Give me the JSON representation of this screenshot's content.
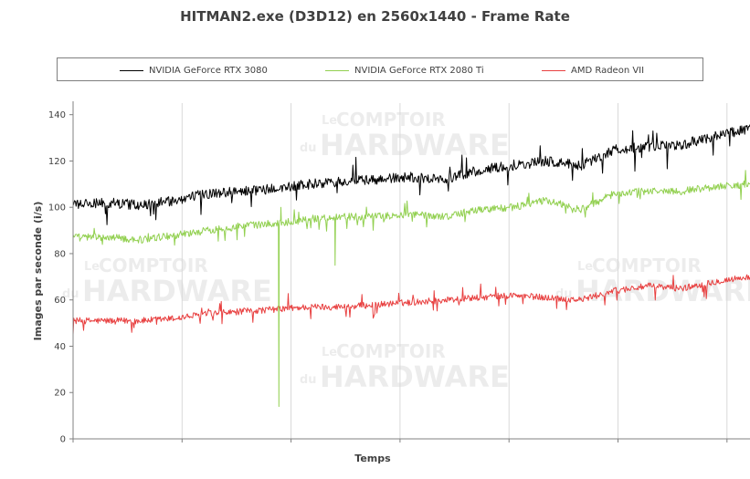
{
  "chart_data": {
    "type": "line",
    "title": "HITMAN2.exe (D3D12) en 2560x1440 - Frame Rate",
    "xlabel": "Temps",
    "ylabel": "Images par seconde (i/s)",
    "ylim": [
      0,
      145
    ],
    "yticks": [
      0,
      20,
      40,
      60,
      80,
      100,
      120,
      140
    ],
    "xlim": [
      0,
      100
    ],
    "xgrid": [
      0,
      16.1,
      32.2,
      48.3,
      64.4,
      80.5,
      96.6
    ],
    "grid": "vertical",
    "legend_position": "top",
    "watermark": {
      "line1": "Le",
      "line2": "COMPTOIR",
      "line3": "du",
      "line4": "HARDWARE"
    },
    "series": [
      {
        "name": "NVIDIA GeForce RTX 3080",
        "color": "#000000",
        "noise": 2.2,
        "x": [
          0,
          5,
          10,
          15,
          20,
          25,
          30,
          35,
          40,
          45,
          50,
          55,
          60,
          65,
          70,
          75,
          80,
          85,
          90,
          95,
          100
        ],
        "values": [
          101,
          102,
          101,
          103,
          106,
          107,
          108,
          110,
          111,
          112,
          113,
          112,
          116,
          118,
          120,
          118,
          125,
          126,
          127,
          131,
          134
        ]
      },
      {
        "name": "NVIDIA GeForce RTX 2080 Ti",
        "color": "#92d050",
        "noise": 1.6,
        "x": [
          0,
          5,
          10,
          15,
          20,
          25,
          30,
          35,
          40,
          45,
          50,
          55,
          60,
          65,
          70,
          75,
          80,
          85,
          90,
          95,
          100
        ],
        "values": [
          87,
          87,
          86,
          88,
          90,
          92,
          93,
          95,
          96,
          96,
          97,
          96,
          99,
          100,
          103,
          99,
          106,
          107,
          107,
          109,
          110
        ],
        "spikes": [
          {
            "x": 30.4,
            "y": 14
          },
          {
            "x": 30.7,
            "y": 100
          },
          {
            "x": 38.7,
            "y": 75
          }
        ]
      },
      {
        "name": "AMD Radeon VII",
        "color": "#e84040",
        "noise": 1.4,
        "x": [
          0,
          5,
          10,
          15,
          20,
          25,
          30,
          35,
          40,
          45,
          50,
          55,
          60,
          65,
          70,
          75,
          80,
          85,
          90,
          95,
          100
        ],
        "values": [
          51,
          51,
          51,
          52,
          54,
          55,
          56,
          57,
          57,
          58,
          59,
          60,
          61,
          62,
          61,
          60,
          64,
          66,
          65,
          68,
          70
        ]
      }
    ]
  }
}
